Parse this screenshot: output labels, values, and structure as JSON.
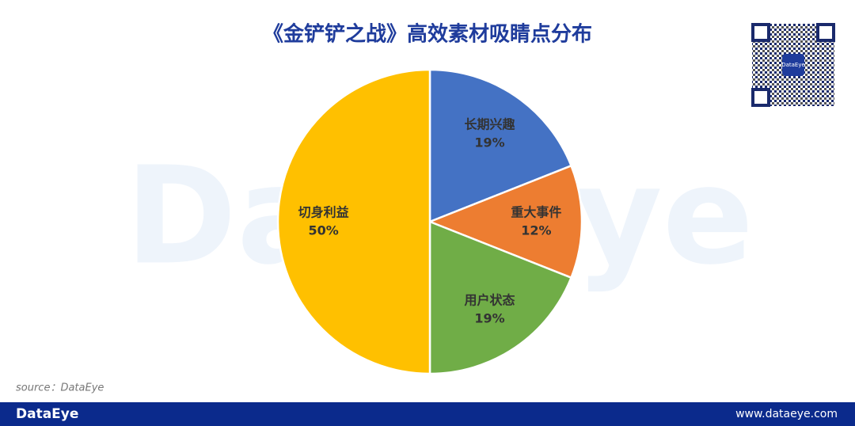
{
  "chart_data": {
    "type": "pie",
    "title": "《金铲铲之战》高效素材吸睛点分布",
    "categories": [
      "长期兴趣",
      "重大事件",
      "用户状态",
      "切身利益"
    ],
    "values": [
      19,
      12,
      19,
      50
    ],
    "value_labels": [
      "19%",
      "12%",
      "19%",
      "50%"
    ],
    "colors": [
      "#4472c4",
      "#ed7d31",
      "#70ad47",
      "#ffc000"
    ]
  },
  "watermark": "DataEye",
  "source": "source：DataEye",
  "qr_logo": "DataEye",
  "footer": {
    "brand": "DataEye",
    "url": "www.dataeye.com"
  }
}
